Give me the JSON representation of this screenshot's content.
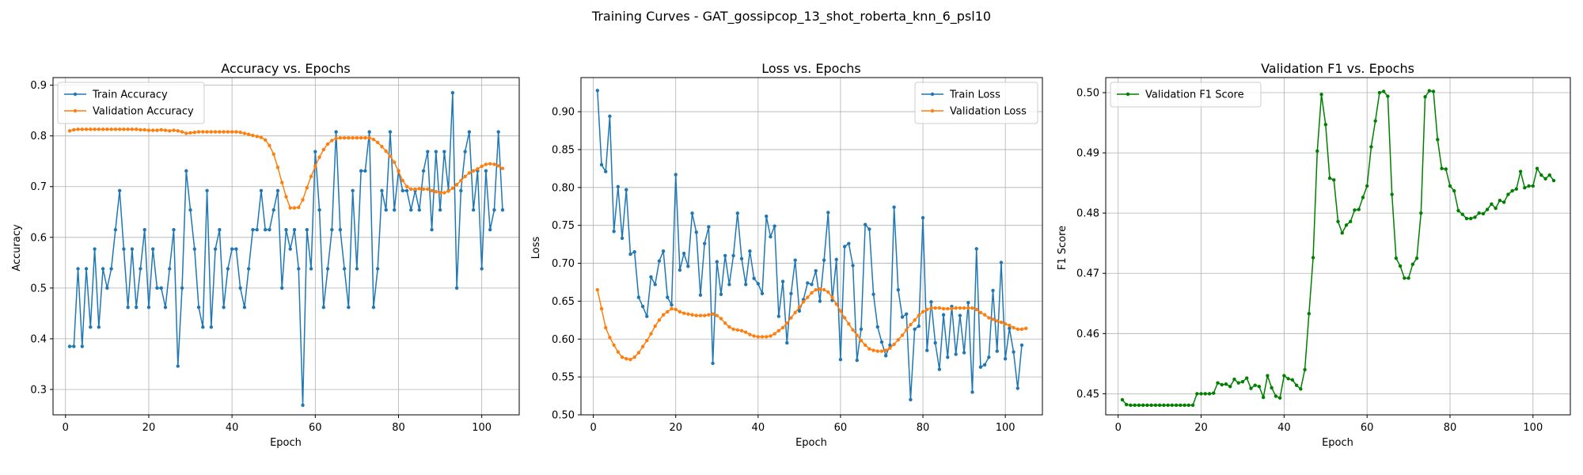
{
  "figure": {
    "suptitle": "Training Curves - GAT_gossipcop_13_shot_roberta_knn_6_psl10"
  },
  "colors": {
    "train": "#1f77b4",
    "validation": "#ff7f0e",
    "f1": "#008000",
    "grid": "#b0b0b0"
  },
  "chart_data": [
    {
      "type": "line",
      "title": "Accuracy vs. Epochs",
      "xlabel": "Epoch",
      "ylabel": "Accuracy",
      "xlim": [
        -3,
        109
      ],
      "ylim": [
        0.25,
        0.915
      ],
      "xticks": [
        0,
        20,
        40,
        60,
        80,
        100
      ],
      "yticks": [
        0.3,
        0.4,
        0.5,
        0.6,
        0.7,
        0.8,
        0.9
      ],
      "ytick_labels": [
        "0.3",
        "0.4",
        "0.5",
        "0.6",
        "0.7",
        "0.8",
        "0.9"
      ],
      "grid": true,
      "legend": "upper-left",
      "x_start": 1,
      "series": [
        {
          "name": "Train Accuracy",
          "color": "#1f77b4",
          "values": [
            0.385,
            0.385,
            0.538,
            0.385,
            0.538,
            0.423,
            0.577,
            0.423,
            0.538,
            0.5,
            0.538,
            0.615,
            0.692,
            0.577,
            0.462,
            0.577,
            0.462,
            0.538,
            0.615,
            0.462,
            0.577,
            0.5,
            0.5,
            0.462,
            0.538,
            0.615,
            0.346,
            0.5,
            0.731,
            0.654,
            0.577,
            0.462,
            0.423,
            0.692,
            0.423,
            0.577,
            0.615,
            0.462,
            0.538,
            0.577,
            0.577,
            0.5,
            0.462,
            0.538,
            0.615,
            0.615,
            0.692,
            0.615,
            0.615,
            0.654,
            0.692,
            0.5,
            0.615,
            0.577,
            0.615,
            0.538,
            0.269,
            0.615,
            0.538,
            0.769,
            0.654,
            0.462,
            0.538,
            0.615,
            0.808,
            0.615,
            0.538,
            0.462,
            0.692,
            0.538,
            0.731,
            0.731,
            0.808,
            0.462,
            0.538,
            0.692,
            0.654,
            0.808,
            0.654,
            0.731,
            0.692,
            0.692,
            0.654,
            0.692,
            0.654,
            0.731,
            0.769,
            0.615,
            0.769,
            0.654,
            0.769,
            0.692,
            0.885,
            0.5,
            0.692,
            0.769,
            0.808,
            0.654,
            0.731,
            0.538,
            0.731,
            0.615,
            0.654,
            0.808,
            0.654
          ]
        },
        {
          "name": "Validation Accuracy",
          "color": "#ff7f0e",
          "values": [
            0.81,
            0.812,
            0.813,
            0.813,
            0.813,
            0.813,
            0.813,
            0.813,
            0.813,
            0.813,
            0.813,
            0.813,
            0.813,
            0.813,
            0.813,
            0.813,
            0.813,
            0.812,
            0.812,
            0.811,
            0.811,
            0.811,
            0.812,
            0.811,
            0.81,
            0.811,
            0.81,
            0.808,
            0.805,
            0.806,
            0.807,
            0.808,
            0.808,
            0.808,
            0.808,
            0.808,
            0.808,
            0.808,
            0.808,
            0.808,
            0.808,
            0.807,
            0.805,
            0.803,
            0.801,
            0.799,
            0.797,
            0.792,
            0.781,
            0.764,
            0.738,
            0.708,
            0.68,
            0.658,
            0.658,
            0.659,
            0.674,
            0.698,
            0.72,
            0.74,
            0.758,
            0.773,
            0.784,
            0.791,
            0.795,
            0.796,
            0.796,
            0.796,
            0.796,
            0.796,
            0.796,
            0.796,
            0.796,
            0.793,
            0.787,
            0.779,
            0.77,
            0.76,
            0.748,
            0.73,
            0.712,
            0.7,
            0.695,
            0.695,
            0.696,
            0.695,
            0.695,
            0.692,
            0.69,
            0.688,
            0.688,
            0.691,
            0.697,
            0.704,
            0.712,
            0.72,
            0.727,
            0.731,
            0.735,
            0.74,
            0.744,
            0.745,
            0.744,
            0.741,
            0.736
          ]
        }
      ]
    },
    {
      "type": "line",
      "title": "Loss vs. Epochs",
      "xlabel": "Epoch",
      "ylabel": "Loss",
      "xlim": [
        -3,
        109
      ],
      "ylim": [
        0.5,
        0.945
      ],
      "xticks": [
        0,
        20,
        40,
        60,
        80,
        100
      ],
      "yticks": [
        0.5,
        0.55,
        0.6,
        0.65,
        0.7,
        0.75,
        0.8,
        0.85,
        0.9
      ],
      "ytick_labels": [
        "0.50",
        "0.55",
        "0.60",
        "0.65",
        "0.70",
        "0.75",
        "0.80",
        "0.85",
        "0.90"
      ],
      "grid": true,
      "legend": "upper-right",
      "x_start": 1,
      "series": [
        {
          "name": "Train Loss",
          "color": "#1f77b4",
          "values": [
            0.928,
            0.83,
            0.821,
            0.894,
            0.742,
            0.801,
            0.733,
            0.797,
            0.712,
            0.715,
            0.655,
            0.643,
            0.63,
            0.682,
            0.672,
            0.703,
            0.716,
            0.655,
            0.645,
            0.817,
            0.691,
            0.713,
            0.696,
            0.766,
            0.741,
            0.658,
            0.726,
            0.748,
            0.568,
            0.702,
            0.659,
            0.71,
            0.672,
            0.71,
            0.766,
            0.706,
            0.672,
            0.716,
            0.68,
            0.673,
            0.66,
            0.762,
            0.735,
            0.749,
            0.63,
            0.676,
            0.595,
            0.66,
            0.704,
            0.637,
            0.652,
            0.674,
            0.672,
            0.69,
            0.65,
            0.704,
            0.767,
            0.651,
            0.705,
            0.573,
            0.722,
            0.726,
            0.697,
            0.572,
            0.613,
            0.751,
            0.745,
            0.659,
            0.616,
            0.596,
            0.578,
            0.592,
            0.774,
            0.665,
            0.629,
            0.633,
            0.52,
            0.613,
            0.617,
            0.76,
            0.585,
            0.649,
            0.595,
            0.56,
            0.632,
            0.576,
            0.643,
            0.58,
            0.631,
            0.582,
            0.648,
            0.53,
            0.719,
            0.563,
            0.566,
            0.576,
            0.664,
            0.584,
            0.701,
            0.574,
            0.614,
            0.583,
            0.535,
            0.592
          ]
        },
        {
          "name": "Validation Loss",
          "color": "#ff7f0e",
          "values": [
            0.665,
            0.64,
            0.615,
            0.602,
            0.592,
            0.583,
            0.576,
            0.574,
            0.573,
            0.576,
            0.582,
            0.59,
            0.598,
            0.607,
            0.617,
            0.625,
            0.632,
            0.636,
            0.64,
            0.639,
            0.636,
            0.634,
            0.633,
            0.632,
            0.631,
            0.631,
            0.631,
            0.632,
            0.633,
            0.631,
            0.627,
            0.621,
            0.616,
            0.613,
            0.612,
            0.611,
            0.609,
            0.606,
            0.604,
            0.603,
            0.603,
            0.603,
            0.604,
            0.607,
            0.611,
            0.615,
            0.621,
            0.628,
            0.635,
            0.642,
            0.649,
            0.655,
            0.661,
            0.665,
            0.666,
            0.665,
            0.662,
            0.655,
            0.646,
            0.637,
            0.628,
            0.62,
            0.612,
            0.605,
            0.598,
            0.592,
            0.587,
            0.585,
            0.584,
            0.584,
            0.585,
            0.588,
            0.593,
            0.599,
            0.605,
            0.612,
            0.619,
            0.625,
            0.631,
            0.636,
            0.639,
            0.641,
            0.641,
            0.641,
            0.64,
            0.64,
            0.64,
            0.641,
            0.641,
            0.641,
            0.641,
            0.641,
            0.639,
            0.635,
            0.632,
            0.628,
            0.626,
            0.624,
            0.622,
            0.62,
            0.618,
            0.615,
            0.613,
            0.613,
            0.614
          ]
        }
      ]
    },
    {
      "type": "line",
      "title": "Validation F1 vs. Epochs",
      "xlabel": "Epoch",
      "ylabel": "F1 Score",
      "xlim": [
        -3,
        109
      ],
      "ylim": [
        0.4465,
        0.5025
      ],
      "xticks": [
        0,
        20,
        40,
        60,
        80,
        100
      ],
      "yticks": [
        0.45,
        0.46,
        0.47,
        0.48,
        0.49,
        0.5
      ],
      "ytick_labels": [
        "0.45",
        "0.46",
        "0.47",
        "0.48",
        "0.49",
        "0.50"
      ],
      "grid": true,
      "legend": "upper-left",
      "x_start": 1,
      "series": [
        {
          "name": "Validation F1 Score",
          "color": "#008000",
          "values": [
            0.449,
            0.4482,
            0.4481,
            0.4481,
            0.4481,
            0.4481,
            0.4481,
            0.4481,
            0.4481,
            0.4481,
            0.4481,
            0.4481,
            0.4481,
            0.4481,
            0.4481,
            0.4481,
            0.4481,
            0.4481,
            0.45,
            0.45,
            0.45,
            0.45,
            0.4501,
            0.4518,
            0.4515,
            0.4516,
            0.4512,
            0.4524,
            0.4518,
            0.452,
            0.4526,
            0.4509,
            0.4514,
            0.4512,
            0.4494,
            0.453,
            0.451,
            0.4496,
            0.4493,
            0.453,
            0.4525,
            0.4523,
            0.4514,
            0.4508,
            0.454,
            0.4633,
            0.4726,
            0.4903,
            0.4997,
            0.4947,
            0.4858,
            0.4855,
            0.4786,
            0.4767,
            0.478,
            0.4786,
            0.4805,
            0.4806,
            0.4826,
            0.4845,
            0.491,
            0.4953,
            0.5,
            0.5002,
            0.4994,
            0.4831,
            0.4725,
            0.4712,
            0.4692,
            0.4692,
            0.4715,
            0.4725,
            0.48,
            0.4993,
            0.5003,
            0.5002,
            0.4922,
            0.4874,
            0.4873,
            0.4845,
            0.4837,
            0.4804,
            0.4798,
            0.4791,
            0.4791,
            0.4793,
            0.48,
            0.4799,
            0.4806,
            0.4815,
            0.4808,
            0.4821,
            0.4818,
            0.4831,
            0.4837,
            0.484,
            0.4869,
            0.4842,
            0.4845,
            0.4845,
            0.4874,
            0.4863,
            0.4857,
            0.4863,
            0.4854
          ]
        }
      ]
    }
  ]
}
